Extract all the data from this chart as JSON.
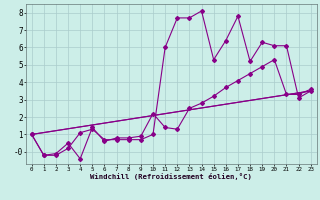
{
  "xlabel": "Windchill (Refroidissement éolien,°C)",
  "background_color": "#cceee8",
  "grid_color": "#aacccc",
  "line_color": "#880088",
  "xlim": [
    -0.5,
    23.5
  ],
  "ylim": [
    -0.7,
    8.5
  ],
  "xticks": [
    0,
    1,
    2,
    3,
    4,
    5,
    6,
    7,
    8,
    9,
    10,
    11,
    12,
    13,
    14,
    15,
    16,
    17,
    18,
    19,
    20,
    21,
    22,
    23
  ],
  "yticks": [
    0,
    1,
    2,
    3,
    4,
    5,
    6,
    7,
    8
  ],
  "ytick_labels": [
    "-0",
    "1",
    "2",
    "3",
    "4",
    "5",
    "6",
    "7",
    "8"
  ],
  "series1_x": [
    0,
    1,
    2,
    3,
    4,
    5,
    6,
    7,
    8,
    9,
    10,
    11,
    12,
    13,
    14,
    15,
    16,
    17,
    18,
    19,
    20,
    21,
    22,
    23
  ],
  "series1_y": [
    1.0,
    -0.2,
    -0.2,
    0.2,
    1.1,
    1.3,
    0.7,
    0.7,
    0.7,
    0.7,
    1.0,
    6.0,
    7.7,
    7.7,
    8.1,
    5.3,
    6.4,
    7.8,
    5.2,
    6.3,
    6.1,
    6.1,
    3.1,
    3.5
  ],
  "series2_x": [
    0,
    1,
    2,
    3,
    4,
    5,
    6,
    7,
    8,
    9,
    10,
    11,
    12,
    13,
    14,
    15,
    16,
    17,
    18,
    19,
    20,
    21,
    22,
    23
  ],
  "series2_y": [
    1.0,
    -0.2,
    -0.1,
    0.5,
    -0.4,
    1.4,
    0.6,
    0.8,
    0.8,
    0.9,
    2.2,
    1.4,
    1.3,
    2.5,
    2.8,
    3.2,
    3.7,
    4.1,
    4.5,
    4.9,
    5.3,
    3.3,
    3.3,
    3.6
  ],
  "series3_x": [
    0,
    23
  ],
  "series3_y": [
    1.0,
    3.5
  ],
  "series4_x": [
    0,
    23
  ],
  "series4_y": [
    1.0,
    3.5
  ]
}
